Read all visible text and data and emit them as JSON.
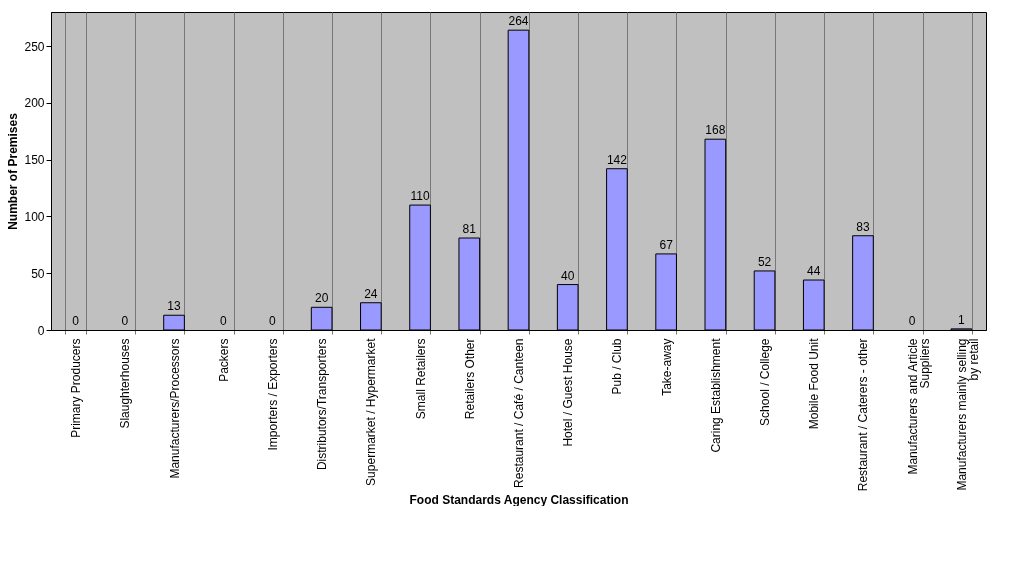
{
  "chart_data": {
    "type": "bar",
    "xlabel": "Food Standards Agency Classification",
    "ylabel": "Number of Premises",
    "categories": [
      "Primary Producers",
      "Slaughterhouses",
      "Manufacturers/Processors",
      "Packers",
      "Importers / Exporters",
      "Distributors/Transporters",
      "Supermarket / Hypermarket",
      "Small Retailers",
      "Retailers Other",
      "Restaurant / Café / Canteen",
      "Hotel / Guest House",
      "Pub / Club",
      "Take-away",
      "Caring Establishment",
      "School / College",
      "Mobile Food Unit",
      "Restaurant / Caterers - other",
      "Manufacturers and Article Suppliers",
      "Manufacturers mainly selling by retail"
    ],
    "values": [
      0,
      0,
      13,
      0,
      0,
      20,
      24,
      110,
      81,
      264,
      40,
      142,
      67,
      168,
      52,
      44,
      83,
      0,
      1
    ],
    "color": "#9999ff",
    "ylim": [
      0,
      280
    ],
    "yticks": [
      0,
      50,
      100,
      150,
      200,
      250
    ],
    "grid": "x",
    "data_labels": true
  }
}
